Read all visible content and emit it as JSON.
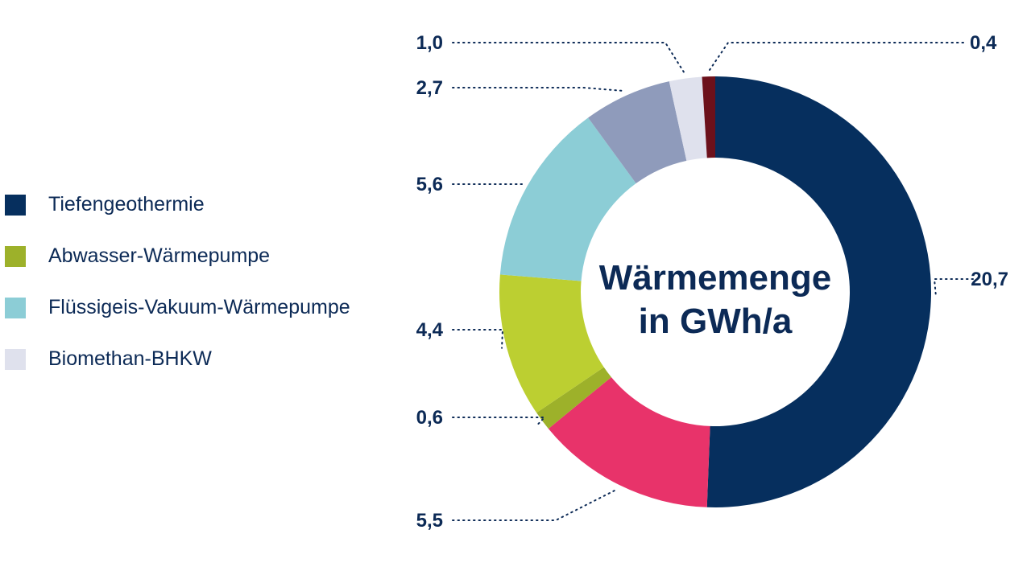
{
  "chart_data": {
    "type": "pie",
    "title": "Wärmemenge in GWh/a",
    "title_lines": [
      "Wärmemenge",
      "in GWh/a"
    ],
    "slices": [
      {
        "value_label": "20,7",
        "value": 20.7,
        "color": "#062f5e"
      },
      {
        "value_label": "5,5",
        "value": 5.5,
        "color": "#e8336a"
      },
      {
        "value_label": "0,6",
        "value": 0.6,
        "color": "#9db12a"
      },
      {
        "value_label": "4,4",
        "value": 4.4,
        "color": "#bccf31"
      },
      {
        "value_label": "5,6",
        "value": 5.6,
        "color": "#8ccdd6"
      },
      {
        "value_label": "2,7",
        "value": 2.7,
        "color": "#8f9bbb"
      },
      {
        "value_label": "1,0",
        "value": 1.0,
        "color": "#dfe1ed"
      },
      {
        "value_label": "0,4",
        "value": 0.4,
        "color": "#6c111b"
      }
    ],
    "legend": [
      {
        "label": "Tiefengeothermie",
        "color": "#062f5e"
      },
      {
        "label": "Abwasser-Wärmepumpe",
        "color": "#9db12a"
      },
      {
        "label": "Flüssigeis-Vakuum-Wärmepumpe",
        "color": "#8ccdd6"
      },
      {
        "label": "Biomethan-BHKW",
        "color": "#dfe1ed"
      }
    ]
  }
}
